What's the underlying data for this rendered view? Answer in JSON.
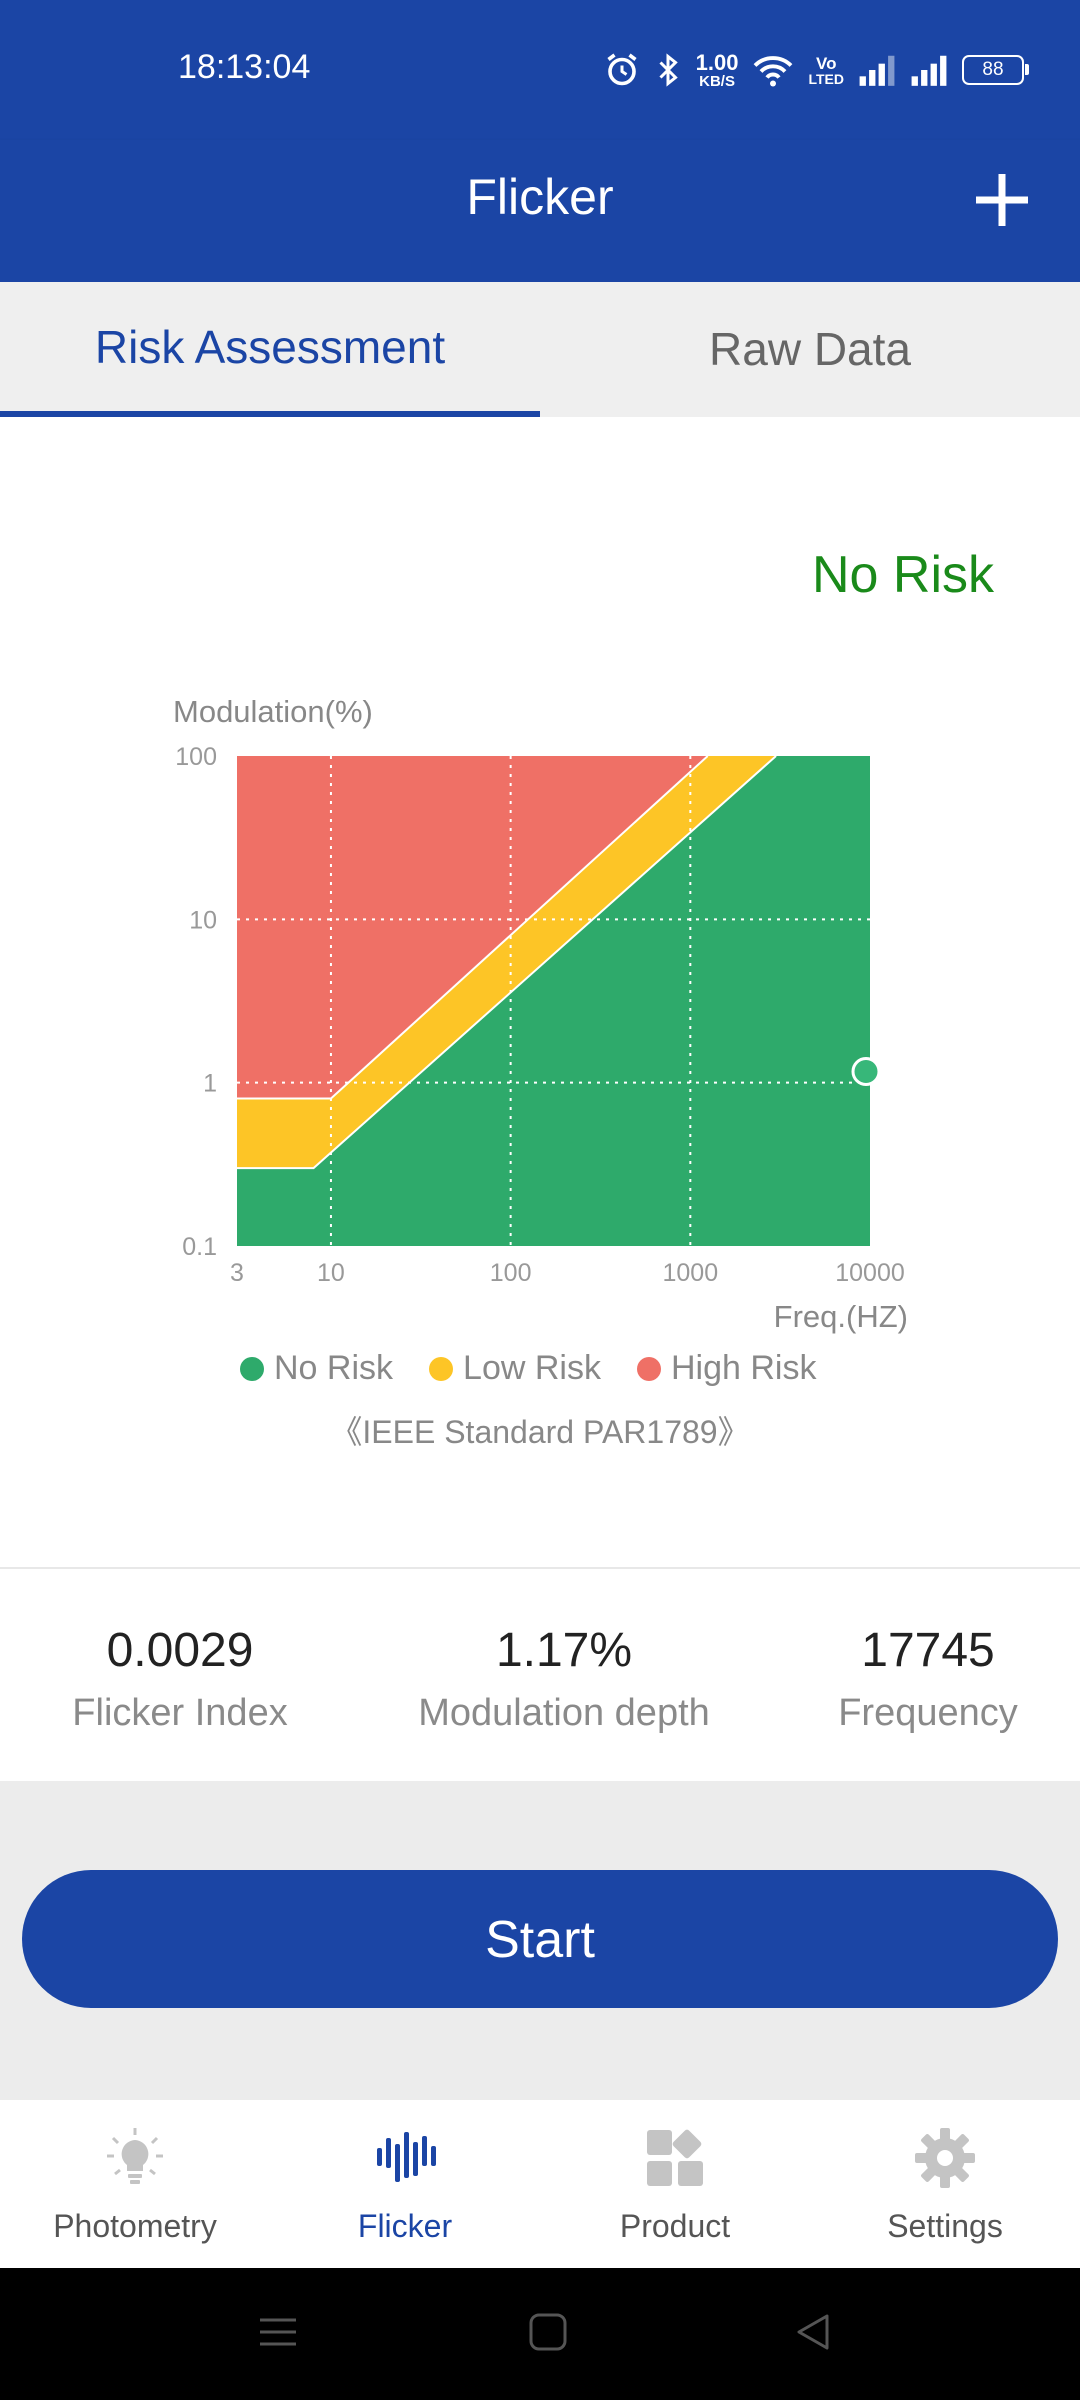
{
  "status_bar": {
    "time": "18:13:04",
    "net_speed_value": "1.00",
    "net_speed_unit": "KB/S",
    "volte_top": "Vo",
    "volte_bottom": "LTED",
    "battery": "88"
  },
  "header": {
    "title": "Flicker"
  },
  "tabs": [
    {
      "label": "Risk Assessment",
      "active": true
    },
    {
      "label": "Raw Data",
      "active": false
    }
  ],
  "risk": {
    "status": "No Risk",
    "status_color": "#1a8a1a"
  },
  "chart_data": {
    "type": "area",
    "ylabel": "Modulation(%)",
    "xlabel": "Freq.(HZ)",
    "x_scale": "log",
    "y_scale": "log",
    "xlim": [
      3,
      10000
    ],
    "ylim": [
      0.1,
      100
    ],
    "x_ticks": [
      "3",
      "10",
      "100",
      "1000",
      "10000"
    ],
    "y_ticks": [
      "100",
      "10",
      "1",
      "0.1"
    ],
    "grid": "dotted",
    "regions": [
      {
        "name": "No Risk",
        "color": "#2eaa6b",
        "boundary": [
          [
            3,
            0.3
          ],
          [
            8,
            0.3
          ],
          [
            3000,
            100
          ]
        ]
      },
      {
        "name": "Low Risk",
        "color": "#fdc526",
        "boundary": [
          [
            3,
            0.8
          ],
          [
            10,
            0.8
          ],
          [
            1250,
            100
          ]
        ]
      },
      {
        "name": "High Risk",
        "color": "#ef7066"
      }
    ],
    "measurement": {
      "frequency": 17745,
      "modulation": 1.17,
      "shown_at_axis_max": true
    },
    "legend_position": "bottom"
  },
  "legend": [
    {
      "label": "No Risk",
      "color": "#2eaa6b"
    },
    {
      "label": "Low Risk",
      "color": "#fdc526"
    },
    {
      "label": "High Risk",
      "color": "#ef7066"
    }
  ],
  "standard_label": "《IEEE Standard PAR1789》",
  "metrics": [
    {
      "value": "0.0029",
      "label": "Flicker Index"
    },
    {
      "value": "1.17%",
      "label": "Modulation depth"
    },
    {
      "value": "17745",
      "label": "Frequency"
    }
  ],
  "start_label": "Start",
  "bottom_nav": [
    {
      "label": "Photometry",
      "icon": "lightbulb-icon",
      "active": false
    },
    {
      "label": "Flicker",
      "icon": "waveform-icon",
      "active": true
    },
    {
      "label": "Product",
      "icon": "grid-icon",
      "active": false
    },
    {
      "label": "Settings",
      "icon": "gear-icon",
      "active": false
    }
  ],
  "colors": {
    "primary": "#1b45a5"
  }
}
